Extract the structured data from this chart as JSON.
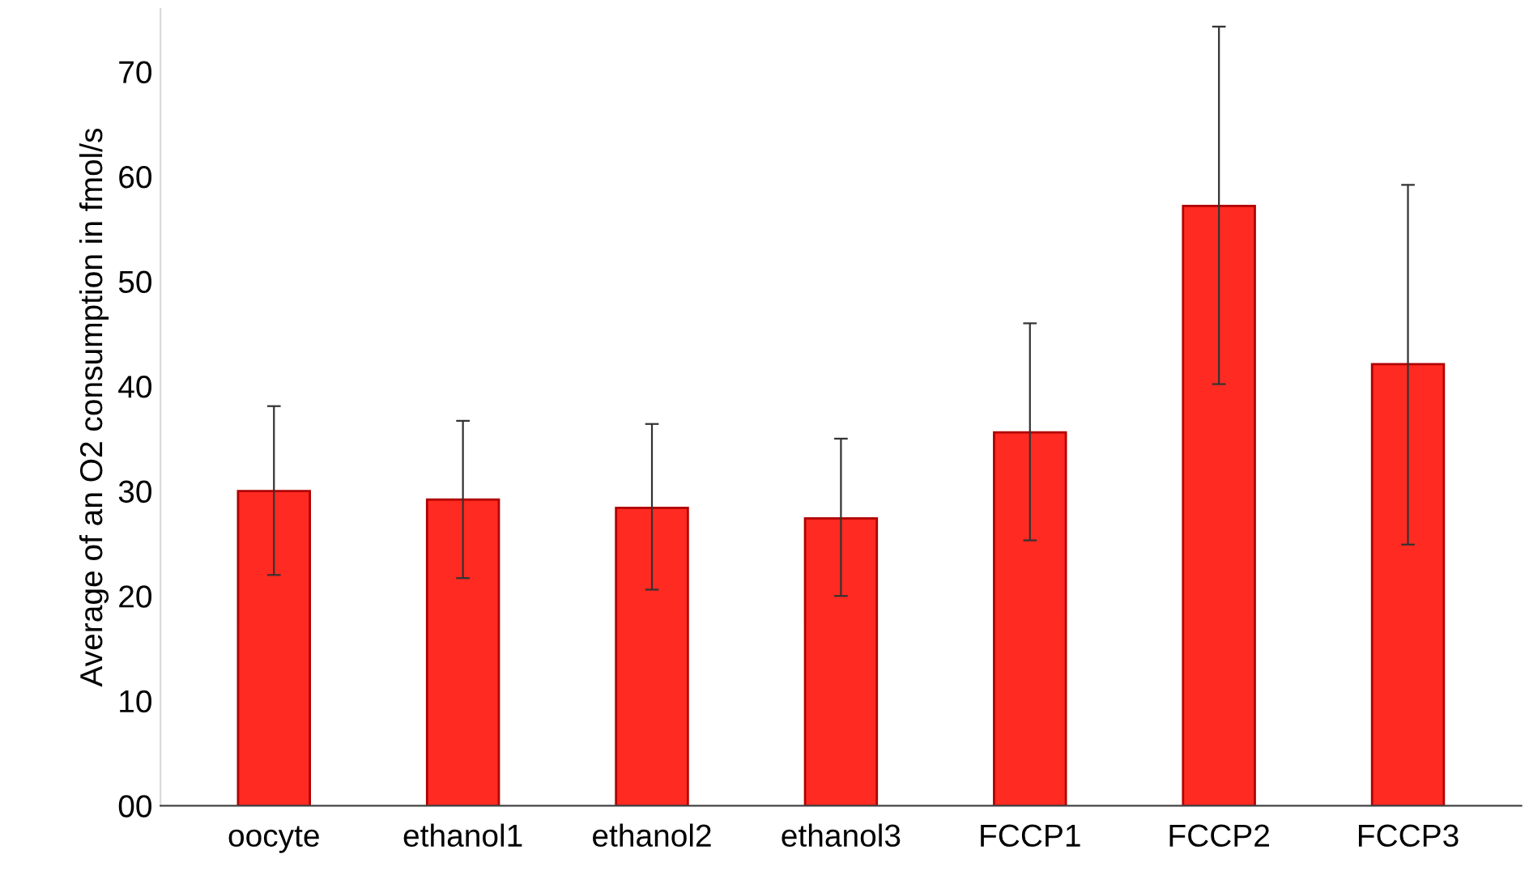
{
  "chart_data": {
    "type": "bar",
    "ylabel": "Average of an O2 consumption in fmol/s",
    "categories": [
      "oocyte",
      "ethanol1",
      "ethanol2",
      "ethanol3",
      "FCCP1",
      "FCCP2",
      "FCCP3"
    ],
    "values": [
      30.0,
      29.2,
      28.4,
      27.4,
      35.6,
      57.2,
      42.1
    ],
    "errors": [
      [
        22.0,
        38.1
      ],
      [
        21.7,
        36.7
      ],
      [
        20.6,
        36.4
      ],
      [
        20.0,
        35.0
      ],
      [
        25.3,
        46.0
      ],
      [
        40.2,
        74.3
      ],
      [
        24.9,
        59.2
      ]
    ],
    "color": "#ff2a22",
    "ylim": [
      0,
      76
    ],
    "yticks": [
      {
        "value": 0,
        "label": "00"
      },
      10,
      20,
      30,
      40,
      50,
      60,
      70
    ],
    "grid": false
  }
}
